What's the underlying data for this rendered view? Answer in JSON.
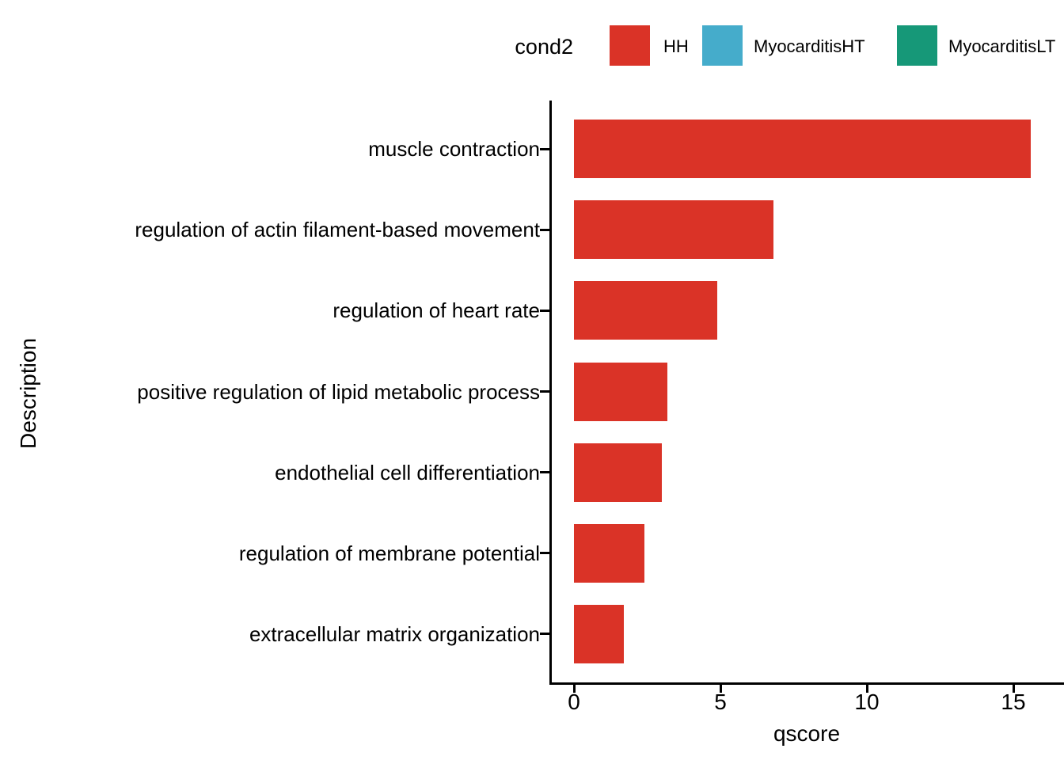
{
  "chart_data": {
    "type": "bar",
    "orientation": "horizontal",
    "categories": [
      "muscle contraction",
      "regulation of actin filament-based movement",
      "regulation of heart rate",
      "positive regulation of lipid metabolic process",
      "endothelial cell differentiation",
      "regulation of membrane potential",
      "extracellular matrix organization"
    ],
    "values": [
      15.6,
      6.8,
      4.9,
      3.2,
      3.0,
      2.4,
      1.7
    ],
    "series_name": "HH",
    "bar_color": "#DA3327",
    "title": "",
    "xlabel": "qscore",
    "ylabel": "Description",
    "x_ticks": [
      0,
      5,
      10,
      15
    ],
    "x_tick_labels": [
      "0",
      "5",
      "10",
      "15"
    ],
    "xlim": [
      0,
      16.7
    ],
    "grid": false,
    "legend_position": "top"
  },
  "legend": {
    "title": "cond2",
    "items": [
      {
        "label": "HH",
        "color": "#DA3327"
      },
      {
        "label": "MyocarditisHT",
        "color": "#45ACCB"
      },
      {
        "label": "MyocarditisLT",
        "color": "#169878"
      }
    ]
  }
}
